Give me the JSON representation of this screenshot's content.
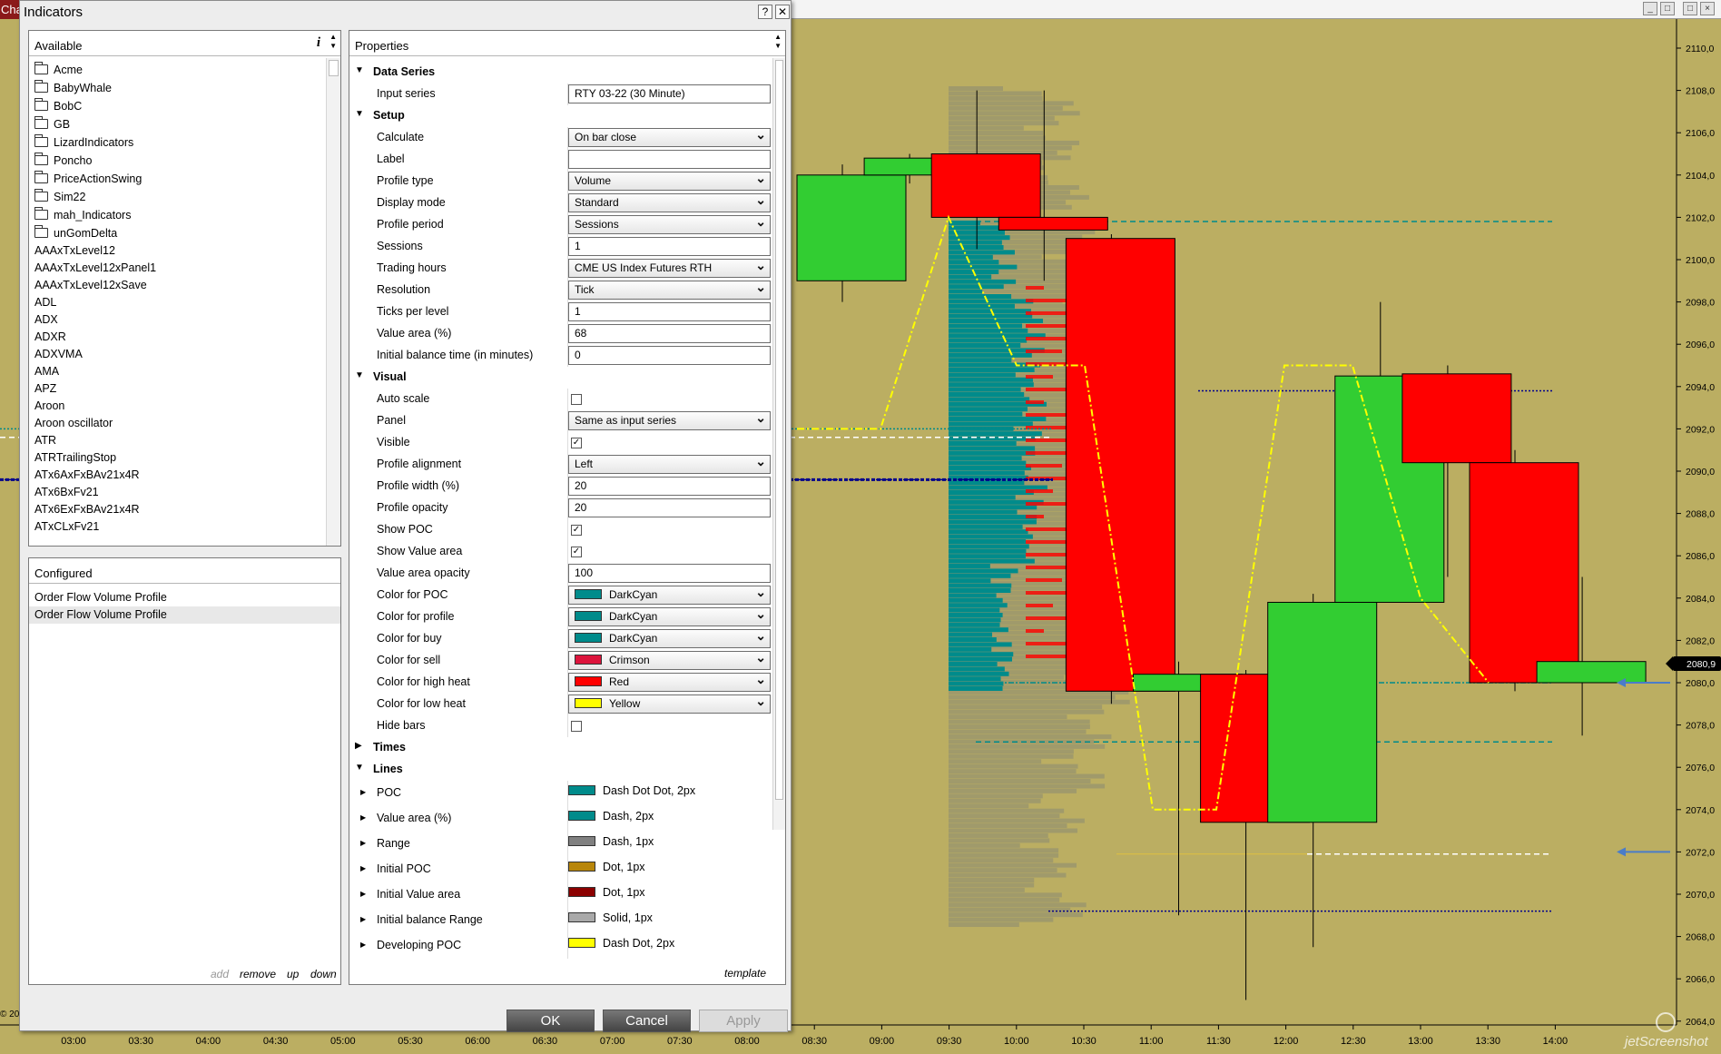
{
  "chart": {
    "tab_label": "Char",
    "window_buttons": [
      "_",
      "□",
      "□",
      "×"
    ],
    "price_labels": [
      "2110,0",
      "2108,0",
      "2106,0",
      "2104,0",
      "2102,0",
      "2100,0",
      "2098,0",
      "2096,0",
      "2094,0",
      "2092,0",
      "2090,0",
      "2088,0",
      "2086,0",
      "2084,0",
      "2082,0",
      "2080,0",
      "2078,0",
      "2076,0",
      "2074,0",
      "2072,0",
      "2070,0",
      "2068,0",
      "2066,0",
      "2064,0"
    ],
    "current_price": "2080,9",
    "time_labels": [
      "03:00",
      "03:30",
      "04:00",
      "04:30",
      "05:00",
      "05:30",
      "06:00",
      "06:30",
      "07:00",
      "07:30",
      "08:00",
      "08:30",
      "09:00",
      "09:30",
      "10:00",
      "10:30",
      "11:00",
      "11:30",
      "12:00",
      "12:30",
      "13:00",
      "13:30",
      "14:00"
    ],
    "copyright": "© 20",
    "watermark": "jetScreenshot",
    "colors": {
      "background": "#bbae62",
      "up": "#32cd32",
      "down": "#ff0000",
      "profile": "#008b8b",
      "yellow_line": "#ffff00"
    },
    "candles": [
      {
        "time": "08:30",
        "open": 2099.0,
        "close": 2104.0,
        "high": 2104.5,
        "low": 2098.0
      },
      {
        "time": "09:00",
        "open": 2104.0,
        "close": 2104.8,
        "high": 2105.0,
        "low": 2103.6
      },
      {
        "time": "09:30",
        "open": 2105.0,
        "close": 2102.0,
        "high": 2108.0,
        "low": 2100.5
      },
      {
        "time": "10:00",
        "open": 2102.0,
        "close": 2101.4,
        "high": 2108.0,
        "low": 2099.0
      },
      {
        "time": "10:30",
        "open": 2101.0,
        "close": 2079.6,
        "high": 2101.2,
        "low": 2079.0
      },
      {
        "time": "11:00",
        "open": 2079.6,
        "close": 2080.4,
        "high": 2081.0,
        "low": 2069.0
      },
      {
        "time": "11:30",
        "open": 2080.4,
        "close": 2073.4,
        "high": 2080.6,
        "low": 2065.0
      },
      {
        "time": "12:00",
        "open": 2073.4,
        "close": 2083.8,
        "high": 2084.2,
        "low": 2067.5
      },
      {
        "time": "12:30",
        "open": 2083.8,
        "close": 2094.5,
        "high": 2098.0,
        "low": 2083.8
      },
      {
        "time": "13:00",
        "open": 2094.6,
        "close": 2090.4,
        "high": 2095.0,
        "low": 2085.0
      },
      {
        "time": "13:30",
        "open": 2090.4,
        "close": 2080.0,
        "high": 2091.0,
        "low": 2079.6
      },
      {
        "time": "14:00",
        "open": 2080.0,
        "close": 2081.0,
        "high": 2085.0,
        "low": 2077.5
      }
    ]
  },
  "dialog": {
    "title": "Indicators",
    "help_btn": "?",
    "close_btn": "✕",
    "available": {
      "header": "Available",
      "info_icon": "i",
      "folders": [
        "Acme",
        "BabyWhale",
        "BobC",
        "GB",
        "LizardIndicators",
        "Poncho",
        "PriceActionSwing",
        "Sim22",
        "mah_Indicators",
        "unGomDelta"
      ],
      "items": [
        "AAAxTxLevel12",
        "AAAxTxLevel12xPanel1",
        "AAAxTxLevel12xSave",
        "ADL",
        "ADX",
        "ADXR",
        "ADXVMA",
        "AMA",
        "APZ",
        "Aroon",
        "Aroon oscillator",
        "ATR",
        "ATRTrailingStop",
        "ATx6AxFxBAv21x4R",
        "ATx6BxFv21",
        "ATx6ExFxBAv21x4R",
        "ATxCLxFv21"
      ]
    },
    "configured": {
      "header": "Configured",
      "items": [
        "Order Flow Volume Profile",
        "Order Flow Volume Profile"
      ],
      "add": "add",
      "remove": "remove",
      "up": "up",
      "down": "down"
    },
    "properties": {
      "header": "Properties",
      "template": "template",
      "rows": [
        {
          "type": "cat",
          "label": "Data Series",
          "open": true
        },
        {
          "type": "text",
          "label": "Input series",
          "value": "RTY 03-22 (30 Minute)"
        },
        {
          "type": "cat",
          "label": "Setup",
          "open": true
        },
        {
          "type": "dd",
          "label": "Calculate",
          "value": "On bar close"
        },
        {
          "type": "text",
          "label": "Label",
          "value": ""
        },
        {
          "type": "dd",
          "label": "Profile type",
          "value": "Volume"
        },
        {
          "type": "dd",
          "label": "Display mode",
          "value": "Standard"
        },
        {
          "type": "dd",
          "label": "Profile period",
          "value": "Sessions"
        },
        {
          "type": "text",
          "label": "Sessions",
          "value": "1"
        },
        {
          "type": "dd",
          "label": "Trading hours",
          "value": "CME US Index Futures RTH"
        },
        {
          "type": "dd",
          "label": "Resolution",
          "value": "Tick"
        },
        {
          "type": "text",
          "label": "Ticks per level",
          "value": "1"
        },
        {
          "type": "text",
          "label": "Value area (%)",
          "value": "68"
        },
        {
          "type": "text",
          "label": "Initial balance time (in minutes)",
          "value": "0"
        },
        {
          "type": "cat",
          "label": "Visual",
          "open": true
        },
        {
          "type": "check",
          "label": "Auto scale",
          "checked": false
        },
        {
          "type": "dd",
          "label": "Panel",
          "value": "Same as input series"
        },
        {
          "type": "check",
          "label": "Visible",
          "checked": true
        },
        {
          "type": "dd",
          "label": "Profile alignment",
          "value": "Left"
        },
        {
          "type": "text",
          "label": "Profile width (%)",
          "value": "20"
        },
        {
          "type": "text",
          "label": "Profile opacity",
          "value": "20"
        },
        {
          "type": "check",
          "label": "Show POC",
          "checked": true
        },
        {
          "type": "check",
          "label": "Show Value area",
          "checked": true
        },
        {
          "type": "text",
          "label": "Value area opacity",
          "value": "100"
        },
        {
          "type": "color",
          "label": "Color for POC",
          "value": "DarkCyan",
          "color": "#008b8b"
        },
        {
          "type": "color",
          "label": "Color for profile",
          "value": "DarkCyan",
          "color": "#008b8b"
        },
        {
          "type": "color",
          "label": "Color for buy",
          "value": "DarkCyan",
          "color": "#008b8b"
        },
        {
          "type": "color",
          "label": "Color for sell",
          "value": "Crimson",
          "color": "#dc143c"
        },
        {
          "type": "color",
          "label": "Color for high heat",
          "value": "Red",
          "color": "#ff0000"
        },
        {
          "type": "color",
          "label": "Color for low heat",
          "value": "Yellow",
          "color": "#ffff00"
        },
        {
          "type": "check",
          "label": "Hide bars",
          "checked": false
        },
        {
          "type": "cat",
          "label": "Times",
          "open": false
        },
        {
          "type": "cat",
          "label": "Lines",
          "open": true
        },
        {
          "type": "line",
          "label": "POC",
          "value": "Dash Dot Dot, 2px",
          "color": "#008b8b"
        },
        {
          "type": "line",
          "label": "Value area (%)",
          "value": "Dash, 2px",
          "color": "#008b8b"
        },
        {
          "type": "line",
          "label": "Range",
          "value": "Dash, 1px",
          "color": "#808080"
        },
        {
          "type": "line",
          "label": "Initial POC",
          "value": "Dot, 1px",
          "color": "#b8860b"
        },
        {
          "type": "line",
          "label": "Initial Value area",
          "value": "Dot, 1px",
          "color": "#8b0000"
        },
        {
          "type": "line",
          "label": "Initial balance Range",
          "value": "Solid, 1px",
          "color": "#a9a9a9"
        },
        {
          "type": "line",
          "label": "Developing POC",
          "value": "Dash Dot, 2px",
          "color": "#ffff00"
        }
      ]
    },
    "buttons": {
      "ok": "OK",
      "cancel": "Cancel",
      "apply": "Apply"
    }
  }
}
